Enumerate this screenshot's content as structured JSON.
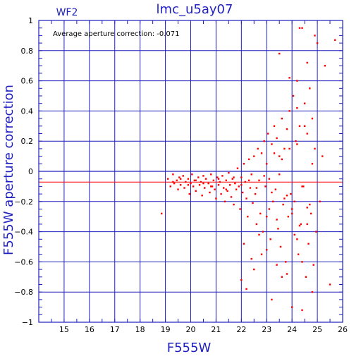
{
  "chart_data": {
    "type": "scatter",
    "title": "lmc_u5ay07",
    "panel_label": "WF2",
    "annotation": "Average aperture correction:  -0.071",
    "xlabel": "F555W",
    "ylabel": "F555W aperture correction",
    "xlim": [
      14,
      26
    ],
    "ylim": [
      -1,
      1
    ],
    "x_ticks": [
      15,
      16,
      17,
      18,
      19,
      20,
      21,
      22,
      23,
      24,
      25,
      26
    ],
    "y_ticks": [
      1,
      0.8,
      0.6,
      0.4,
      0.2,
      0,
      -0.2,
      -0.4,
      -0.6,
      -0.8,
      -1
    ],
    "y_tick_labels": [
      "1",
      "0.8",
      "0.6",
      "0.4",
      "0.2",
      "0",
      "−0.2",
      "−0.4",
      "−0.6",
      "−0.8",
      "−1"
    ],
    "grid": true,
    "reference_lines": [
      0
    ],
    "mean_line": -0.071,
    "colors": {
      "axes": "#1f1fbf",
      "points": "#ff0000",
      "mean_line": "#ff0000"
    },
    "points_x": [
      18.85,
      19.1,
      19.2,
      19.3,
      19.35,
      19.45,
      19.5,
      19.55,
      19.6,
      19.7,
      19.75,
      19.8,
      19.9,
      19.95,
      20.0,
      20.05,
      20.1,
      20.15,
      20.2,
      20.3,
      20.35,
      20.4,
      20.45,
      20.5,
      20.55,
      20.6,
      20.7,
      20.75,
      20.8,
      20.85,
      20.9,
      20.95,
      21.0,
      21.05,
      21.1,
      21.15,
      21.2,
      21.25,
      21.3,
      21.35,
      21.4,
      21.45,
      21.5,
      21.55,
      21.6,
      21.65,
      21.7,
      21.75,
      21.8,
      21.85,
      21.9,
      21.95,
      22.0,
      22.05,
      22.1,
      22.15,
      22.2,
      22.25,
      22.3,
      22.35,
      22.4,
      22.45,
      22.5,
      22.55,
      22.6,
      22.65,
      22.7,
      22.75,
      22.8,
      22.85,
      22.9,
      22.95,
      23.0,
      23.05,
      23.1,
      23.15,
      23.2,
      23.25,
      23.3,
      23.35,
      23.4,
      23.45,
      23.5,
      23.55,
      23.6,
      23.65,
      23.7,
      23.75,
      23.8,
      23.85,
      23.9,
      23.95,
      24.0,
      24.05,
      24.1,
      24.15,
      24.2,
      24.25,
      24.3,
      24.35,
      24.4,
      24.45,
      24.5,
      24.55,
      24.6,
      24.65,
      24.7,
      24.75,
      24.8,
      24.85,
      24.9,
      24.95,
      25.0,
      25.1,
      25.2,
      25.3,
      25.5,
      19.3,
      19.6,
      19.9,
      20.2,
      20.5,
      20.8,
      21.1,
      21.4,
      21.7,
      22.0,
      22.3,
      22.6,
      22.9,
      23.2,
      23.5,
      23.8,
      24.1,
      24.4,
      24.7,
      23.0,
      23.3,
      23.6,
      23.9,
      24.2,
      24.5,
      24.8,
      23.1,
      23.4,
      23.7,
      24.0,
      24.3,
      24.6,
      22.2,
      22.5,
      22.8,
      23.2,
      23.6,
      24.0,
      24.4,
      24.8,
      22.0,
      22.1,
      22.4,
      22.7,
      23.0,
      23.4,
      23.8,
      24.2,
      24.6,
      24.3,
      24.4,
      23.5,
      23.9,
      24.2,
      24.6,
      24.9,
      25.7
    ],
    "points_y": [
      -0.28,
      -0.05,
      -0.1,
      -0.02,
      -0.08,
      -0.06,
      -0.12,
      -0.04,
      -0.09,
      -0.03,
      -0.11,
      -0.07,
      -0.05,
      -0.15,
      -0.08,
      -0.02,
      -0.1,
      -0.06,
      -0.13,
      -0.04,
      -0.09,
      -0.07,
      -0.16,
      -0.03,
      -0.11,
      -0.05,
      -0.08,
      -0.14,
      -0.02,
      -0.1,
      -0.06,
      -0.12,
      -0.18,
      -0.04,
      -0.09,
      -0.07,
      -0.15,
      -0.03,
      -0.11,
      -0.2,
      -0.06,
      -0.13,
      -0.01,
      -0.09,
      -0.17,
      -0.05,
      -0.22,
      -0.08,
      -0.12,
      0.02,
      -0.1,
      -0.25,
      -0.04,
      -0.14,
      0.05,
      -0.07,
      -0.18,
      -0.3,
      0.08,
      -0.11,
      -0.02,
      -0.21,
      0.1,
      -0.15,
      -0.35,
      0.15,
      -0.06,
      -0.28,
      0.12,
      -0.4,
      0.2,
      -0.1,
      -0.3,
      0.25,
      -0.05,
      -0.45,
      0.18,
      -0.2,
      0.3,
      -0.12,
      0.22,
      -0.38,
      0.1,
      -0.5,
      0.35,
      -0.22,
      0.15,
      -0.6,
      0.28,
      -0.3,
      0.4,
      -0.15,
      -0.25,
      0.5,
      -0.42,
      0.2,
      0.6,
      -0.55,
      0.3,
      -0.35,
      0.95,
      -0.1,
      0.45,
      -0.7,
      0.25,
      -0.48,
      0.55,
      -0.28,
      0.35,
      -0.62,
      0.15,
      -0.4,
      0.85,
      -0.2,
      0.1,
      0.7,
      -0.75,
      -0.07,
      -0.05,
      -0.09,
      -0.06,
      -0.08,
      -0.1,
      -0.05,
      -0.12,
      -0.04,
      -0.09,
      -0.06,
      -0.11,
      -0.03,
      -0.14,
      -0.02,
      -0.16,
      -0.2,
      -0.1,
      -0.22,
      0.05,
      0.12,
      0.08,
      0.15,
      0.18,
      0.3,
      0.05,
      -0.25,
      -0.32,
      -0.18,
      -0.28,
      -0.36,
      -0.24,
      -0.78,
      -0.65,
      -0.55,
      -0.85,
      -0.7,
      -0.9,
      -0.6,
      -0.8,
      -0.72,
      -0.48,
      -0.58,
      -0.42,
      -0.52,
      -0.62,
      -0.68,
      -0.45,
      -0.35,
      0.95,
      -0.92,
      0.78,
      0.62,
      0.42,
      0.72,
      0.9,
      0.87
    ]
  }
}
